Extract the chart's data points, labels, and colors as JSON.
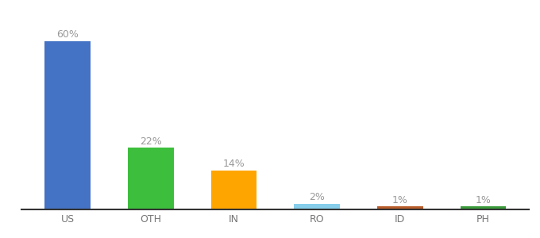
{
  "categories": [
    "US",
    "OTH",
    "IN",
    "RO",
    "ID",
    "PH"
  ],
  "values": [
    60,
    22,
    14,
    2,
    1,
    1
  ],
  "bar_colors": [
    "#4472C4",
    "#3DBF3D",
    "#FFA500",
    "#87CEEB",
    "#B85C2A",
    "#3A9A3A"
  ],
  "label_color": "#999999",
  "tick_color": "#777777",
  "background_color": "#ffffff",
  "ylim": [
    0,
    68
  ],
  "bar_width": 0.55,
  "label_fontsize": 9,
  "tick_fontsize": 9
}
